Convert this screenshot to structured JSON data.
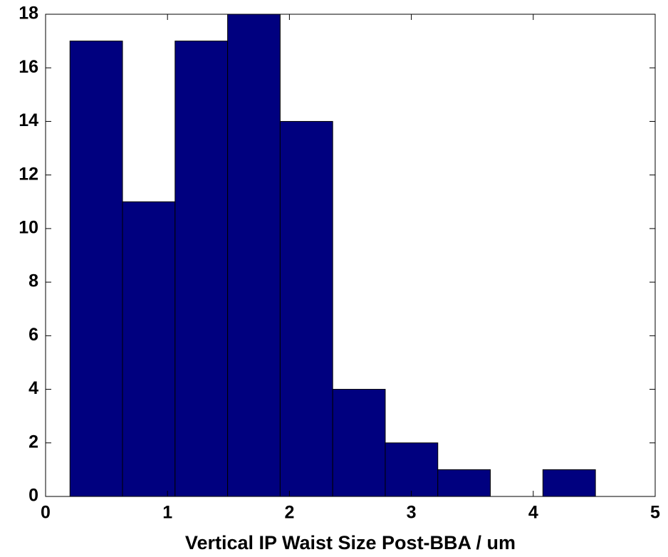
{
  "chart_data": {
    "type": "histogram",
    "xlabel": "Vertical IP Waist Size Post-BBA / um",
    "bins": [
      0.2,
      0.631,
      1.062,
      1.493,
      1.924,
      2.355,
      2.786,
      3.217,
      3.648,
      4.079,
      4.51
    ],
    "counts": [
      17,
      11,
      17,
      18,
      14,
      4,
      2,
      1,
      0,
      1
    ],
    "color": "#00007f",
    "xlim": [
      0,
      5
    ],
    "xticks": [
      0,
      1,
      2,
      3,
      4,
      5
    ],
    "ylim": [
      0,
      18
    ],
    "yticks": [
      0,
      2,
      4,
      6,
      8,
      10,
      12,
      14,
      16,
      18
    ],
    "grid": false
  }
}
